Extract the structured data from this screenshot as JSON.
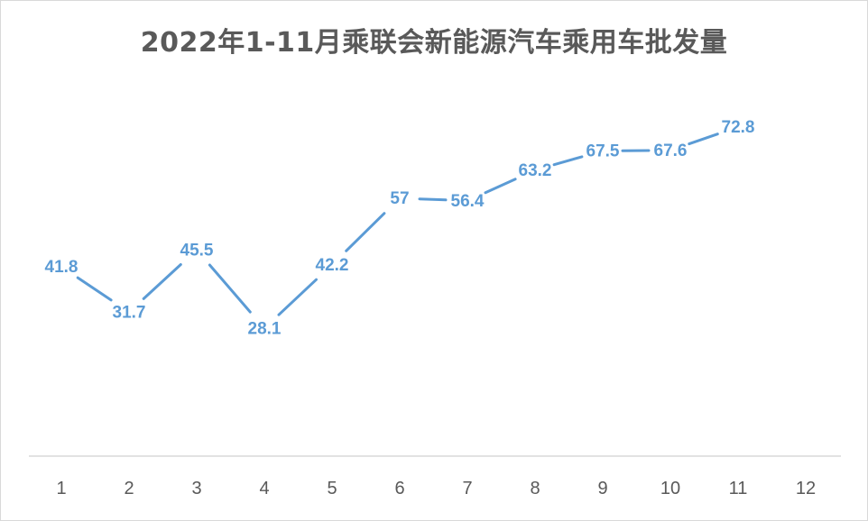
{
  "chart_data": {
    "type": "line",
    "title": "2022年1-11月乘联会新能源汽车乘用车批发量",
    "categories": [
      "1",
      "2",
      "3",
      "4",
      "5",
      "6",
      "7",
      "8",
      "9",
      "10",
      "11",
      "12"
    ],
    "series": [
      {
        "values": [
          41.8,
          31.7,
          45.5,
          28.1,
          42.2,
          57,
          56.4,
          63.2,
          67.5,
          67.6,
          72.8,
          null
        ]
      }
    ],
    "data_labels": true,
    "grid": false,
    "colors": {
      "line": "#5b9bd5",
      "labels": "#5b9bd5",
      "axis": "#d9d9d9",
      "text": "#595959"
    }
  }
}
